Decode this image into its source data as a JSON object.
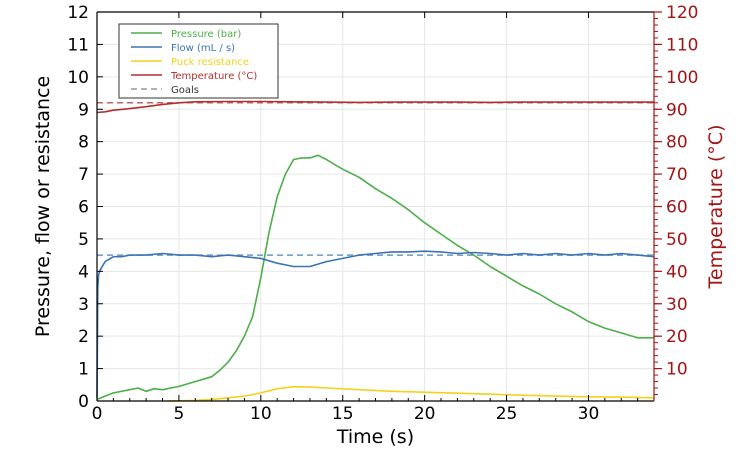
{
  "chart_data": {
    "type": "line",
    "xlabel": "Time (s)",
    "ylabel": "Pressure, flow or resistance",
    "y2label": "Temperature (°C)",
    "xlim": [
      0,
      34
    ],
    "ylim": [
      0,
      12
    ],
    "y2lim": [
      0,
      120
    ],
    "xticks": [
      0,
      5,
      10,
      15,
      20,
      25,
      30
    ],
    "yticks": [
      0,
      1,
      2,
      3,
      4,
      5,
      6,
      7,
      8,
      9,
      10,
      11,
      12
    ],
    "y2ticks": [
      10,
      20,
      30,
      40,
      50,
      60,
      70,
      80,
      90,
      100,
      110,
      120
    ],
    "grid": true,
    "legend_position": "top-left",
    "colors": {
      "pressure": "#4caf4a",
      "flow": "#3a74b4",
      "resistance": "#f2d21b",
      "temperature": "#b03030",
      "goals": "#999999",
      "right_axis": "#a31515",
      "axis": "#000000",
      "grid": "#e6e6e6"
    },
    "series": [
      {
        "name": "Pressure (bar)",
        "key": "pressure",
        "axis": "left",
        "x": [
          0,
          0.5,
          1,
          2,
          2.5,
          3,
          3.5,
          4,
          5,
          6,
          7,
          7.5,
          8,
          8.5,
          9,
          9.5,
          10,
          10.5,
          11,
          11.5,
          12,
          12.5,
          13,
          13.5,
          14,
          14.5,
          15,
          16,
          17,
          18,
          19,
          20,
          21,
          22,
          23,
          24,
          25,
          26,
          27,
          28,
          29,
          30,
          31,
          32,
          33,
          34
        ],
        "y": [
          0.05,
          0.15,
          0.25,
          0.35,
          0.4,
          0.3,
          0.38,
          0.35,
          0.45,
          0.6,
          0.75,
          0.95,
          1.2,
          1.55,
          2.0,
          2.6,
          3.8,
          5.2,
          6.3,
          7.0,
          7.45,
          7.5,
          7.5,
          7.58,
          7.45,
          7.3,
          7.15,
          6.9,
          6.55,
          6.25,
          5.9,
          5.5,
          5.15,
          4.8,
          4.5,
          4.15,
          3.85,
          3.55,
          3.3,
          3.0,
          2.75,
          2.45,
          2.25,
          2.1,
          1.95,
          1.95
        ]
      },
      {
        "name": "Flow (mL / s)",
        "key": "flow",
        "axis": "left",
        "x": [
          0,
          0.05,
          0.1,
          0.2,
          0.5,
          1,
          1.5,
          2,
          3,
          4,
          5,
          6,
          7,
          8,
          9,
          10,
          11,
          12,
          13,
          14,
          15,
          16,
          17,
          18,
          19,
          20,
          21,
          22,
          23,
          24,
          25,
          26,
          27,
          28,
          29,
          30,
          31,
          32,
          33,
          34
        ],
        "y": [
          0.1,
          3.5,
          3.9,
          4.05,
          4.3,
          4.45,
          4.45,
          4.5,
          4.5,
          4.55,
          4.5,
          4.5,
          4.45,
          4.5,
          4.45,
          4.4,
          4.25,
          4.15,
          4.15,
          4.3,
          4.4,
          4.5,
          4.55,
          4.6,
          4.6,
          4.62,
          4.6,
          4.55,
          4.58,
          4.55,
          4.5,
          4.55,
          4.5,
          4.55,
          4.5,
          4.55,
          4.5,
          4.55,
          4.5,
          4.45
        ]
      },
      {
        "name": "Puck resistance",
        "key": "resistance",
        "axis": "left",
        "x": [
          4.3,
          6,
          7,
          8,
          9,
          10,
          11,
          12,
          13,
          14,
          16,
          18,
          20,
          22,
          24,
          26,
          28,
          30,
          32,
          34
        ],
        "y": [
          0.0,
          0.02,
          0.05,
          0.1,
          0.15,
          0.25,
          0.38,
          0.44,
          0.43,
          0.4,
          0.35,
          0.3,
          0.27,
          0.24,
          0.21,
          0.18,
          0.15,
          0.13,
          0.12,
          0.1
        ]
      },
      {
        "name": "Temperature (°C)",
        "key": "temperature",
        "axis": "right",
        "x": [
          0,
          0.5,
          1,
          2,
          3,
          4,
          5,
          6,
          8,
          10,
          12,
          14,
          16,
          18,
          20,
          22,
          24,
          26,
          28,
          30,
          32,
          34
        ],
        "y": [
          89,
          89.2,
          89.7,
          90.2,
          90.8,
          91.5,
          92.0,
          92.3,
          92.4,
          92.4,
          92.3,
          92.2,
          92.1,
          92.2,
          92.2,
          92.2,
          92.1,
          92.2,
          92.2,
          92.2,
          92.2,
          92.2
        ]
      }
    ],
    "goals": [
      {
        "key": "temperature_goal",
        "axis": "right",
        "x": [
          0,
          34
        ],
        "y": [
          92,
          92
        ],
        "color": "#b03030"
      },
      {
        "key": "flow_goal",
        "axis": "left",
        "x": [
          0,
          34
        ],
        "y": [
          4.5,
          4.5
        ],
        "color": "#3a74b4"
      }
    ],
    "legend": [
      {
        "label": "Pressure (bar)",
        "key": "pressure",
        "dash": false
      },
      {
        "label": "Flow (mL / s)",
        "key": "flow",
        "dash": false
      },
      {
        "label": "Puck resistance",
        "key": "resistance",
        "dash": false
      },
      {
        "label": "Temperature (°C)",
        "key": "temperature",
        "dash": false
      },
      {
        "label": "Goals",
        "key": "goals",
        "dash": true
      }
    ]
  }
}
